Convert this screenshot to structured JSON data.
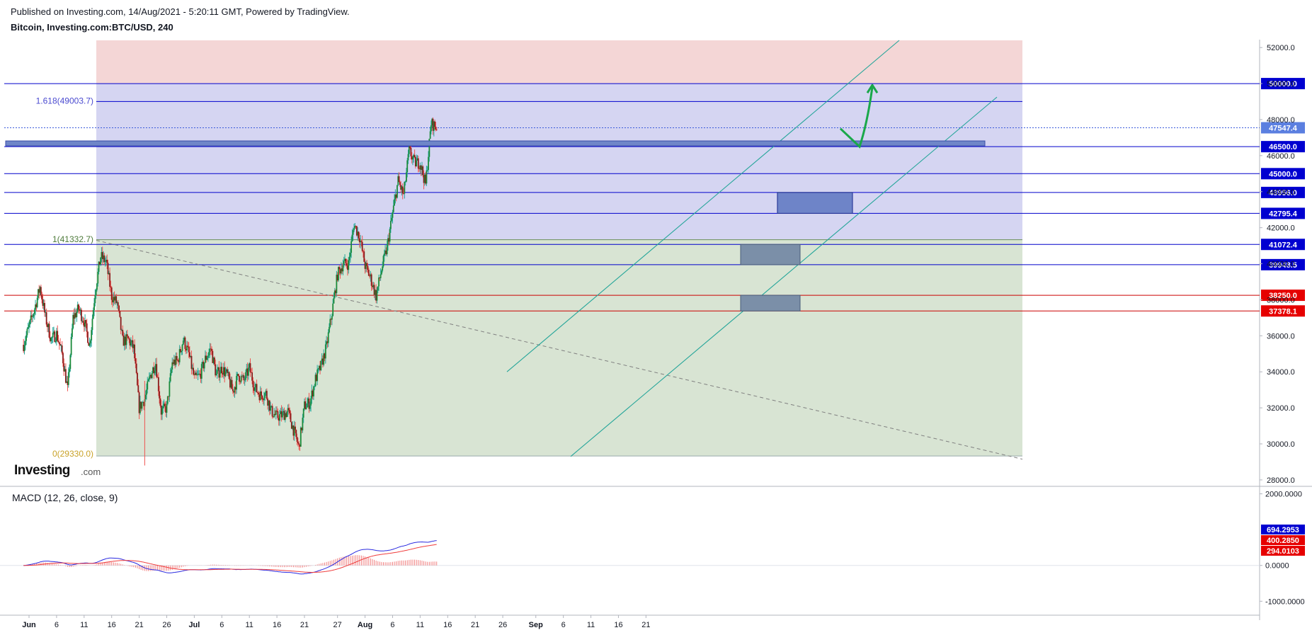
{
  "header": {
    "published": "Published on Investing.com, 14/Aug/2021 - 5:20:11 GMT, Powered by TradingView.",
    "symbol": "Bitcoin, Investing.com:BTC/USD, 240"
  },
  "logo": {
    "text_bold": "Investing",
    "text_light": ".com"
  },
  "macd_title": "MACD (12, 26, close, 9)",
  "colors": {
    "up": "#26a69a",
    "up_body": "#1b8a3a",
    "down": "#ef5350",
    "down_body": "#8b1a1a",
    "blue_line": "#0000cc",
    "red_line": "#cc0000",
    "zone_red": "#f4d6d6",
    "zone_blue": "#d5d5f2",
    "zone_green": "#d8e4d3",
    "channel": "#26a69a",
    "arrow": "#1aa84a",
    "macd_line": "#2929e0",
    "signal_line": "#ef3b3b"
  },
  "chart_data": [
    {
      "type": "candlestick",
      "title": "Bitcoin, Investing.com:BTC/USD, 240",
      "x_tick_labels": [
        "Jun",
        "6",
        "11",
        "16",
        "21",
        "26",
        "Jul",
        "6",
        "11",
        "16",
        "21",
        "27",
        "Aug",
        "6",
        "11",
        "16",
        "21",
        "26",
        "Sep",
        "6",
        "11",
        "16",
        "21"
      ],
      "x_range_days": [
        "2021-06-01",
        "2021-09-21"
      ],
      "y_tick_labels": [
        "52000.0",
        "50000.0",
        "48000.0",
        "46000.0",
        "44000.0",
        "42000.0",
        "40000.0",
        "38000.0",
        "36000.0",
        "34000.0",
        "32000.0",
        "30000.0",
        "28000.0"
      ],
      "ylim": [
        27800,
        52400
      ],
      "series_close_anchors": [
        [
          "2021-05-31",
          35500
        ],
        [
          "2021-06-01",
          36500
        ],
        [
          "2021-06-02",
          37500
        ],
        [
          "2021-06-03",
          38700
        ],
        [
          "2021-06-04",
          37000
        ],
        [
          "2021-06-05",
          35800
        ],
        [
          "2021-06-06",
          36100
        ],
        [
          "2021-06-07",
          35000
        ],
        [
          "2021-06-08",
          33000
        ],
        [
          "2021-06-09",
          37000
        ],
        [
          "2021-06-10",
          37500
        ],
        [
          "2021-06-11",
          36800
        ],
        [
          "2021-06-12",
          35500
        ],
        [
          "2021-06-13",
          38500
        ],
        [
          "2021-06-14",
          40400
        ],
        [
          "2021-06-15",
          40100
        ],
        [
          "2021-06-16",
          38200
        ],
        [
          "2021-06-17",
          37800
        ],
        [
          "2021-06-18",
          35700
        ],
        [
          "2021-06-19",
          35800
        ],
        [
          "2021-06-20",
          35300
        ],
        [
          "2021-06-21",
          32000
        ],
        [
          "2021-06-22",
          32500
        ],
        [
          "2021-06-23",
          33800
        ],
        [
          "2021-06-24",
          34500
        ],
        [
          "2021-06-25",
          31800
        ],
        [
          "2021-06-26",
          32000
        ],
        [
          "2021-06-27",
          34500
        ],
        [
          "2021-06-28",
          34600
        ],
        [
          "2021-06-29",
          35800
        ],
        [
          "2021-06-30",
          35000
        ],
        [
          "2021-07-01",
          33600
        ],
        [
          "2021-07-02",
          33800
        ],
        [
          "2021-07-03",
          34700
        ],
        [
          "2021-07-04",
          35300
        ],
        [
          "2021-07-05",
          33800
        ],
        [
          "2021-07-06",
          34200
        ],
        [
          "2021-07-07",
          33800
        ],
        [
          "2021-07-08",
          32900
        ],
        [
          "2021-07-09",
          33800
        ],
        [
          "2021-07-10",
          33500
        ],
        [
          "2021-07-11",
          34200
        ],
        [
          "2021-07-12",
          33100
        ],
        [
          "2021-07-13",
          32700
        ],
        [
          "2021-07-14",
          32800
        ],
        [
          "2021-07-15",
          31800
        ],
        [
          "2021-07-16",
          31500
        ],
        [
          "2021-07-17",
          31600
        ],
        [
          "2021-07-18",
          31800
        ],
        [
          "2021-07-19",
          30800
        ],
        [
          "2021-07-20",
          29800
        ],
        [
          "2021-07-21",
          32100
        ],
        [
          "2021-07-22",
          32300
        ],
        [
          "2021-07-23",
          33600
        ],
        [
          "2021-07-24",
          34300
        ],
        [
          "2021-07-25",
          35400
        ],
        [
          "2021-07-26",
          37300
        ],
        [
          "2021-07-27",
          39400
        ],
        [
          "2021-07-28",
          40000
        ],
        [
          "2021-07-29",
          40000
        ],
        [
          "2021-07-30",
          42200
        ],
        [
          "2021-07-31",
          41500
        ],
        [
          "2021-08-01",
          39900
        ],
        [
          "2021-08-02",
          39200
        ],
        [
          "2021-08-03",
          38200
        ],
        [
          "2021-08-04",
          39700
        ],
        [
          "2021-08-05",
          40900
        ],
        [
          "2021-08-06",
          42800
        ],
        [
          "2021-08-07",
          44600
        ],
        [
          "2021-08-08",
          43800
        ],
        [
          "2021-08-09",
          46300
        ],
        [
          "2021-08-10",
          45600
        ],
        [
          "2021-08-11",
          45600
        ],
        [
          "2021-08-12",
          44400
        ],
        [
          "2021-08-13",
          47800
        ],
        [
          "2021-08-14",
          47547
        ]
      ],
      "horizontal_levels": [
        {
          "value": 50000.0,
          "label": "50000.0",
          "color": "blue"
        },
        {
          "value": 47547.4,
          "label": "47547.4",
          "color": "current"
        },
        {
          "value": 46500.0,
          "label": "46500.0",
          "color": "blue"
        },
        {
          "value": 45000.0,
          "label": "45000.0",
          "color": "blue"
        },
        {
          "value": 43956.0,
          "label": "43956.0",
          "color": "blue"
        },
        {
          "value": 42795.4,
          "label": "42795.4",
          "color": "blue"
        },
        {
          "value": 41072.4,
          "label": "41072.4",
          "color": "blue"
        },
        {
          "value": 39948.5,
          "label": "39948.5",
          "color": "blue"
        },
        {
          "value": 38250.0,
          "label": "38250.0",
          "color": "red"
        },
        {
          "value": 37378.1,
          "label": "37378.1",
          "color": "red"
        }
      ],
      "fib_labels": [
        "1.618(49003.7)",
        "1(41332.7)",
        "0(29330.0)"
      ],
      "fib_levels": [
        49003.7,
        41332.7,
        29330.0
      ],
      "annotations": [
        "ascending channel",
        "descending trendline",
        "demand zones",
        "projected bullish path to 50000"
      ]
    },
    {
      "type": "macd",
      "title": "MACD (12, 26, close, 9)",
      "y_tick_labels": [
        "2000.0000",
        "0.0000",
        "-1000.0000"
      ],
      "ylim": [
        -1350,
        2150
      ],
      "last_values": {
        "macd": "694.2953",
        "signal": "400.2850",
        "histogram": "294.0103"
      }
    }
  ]
}
